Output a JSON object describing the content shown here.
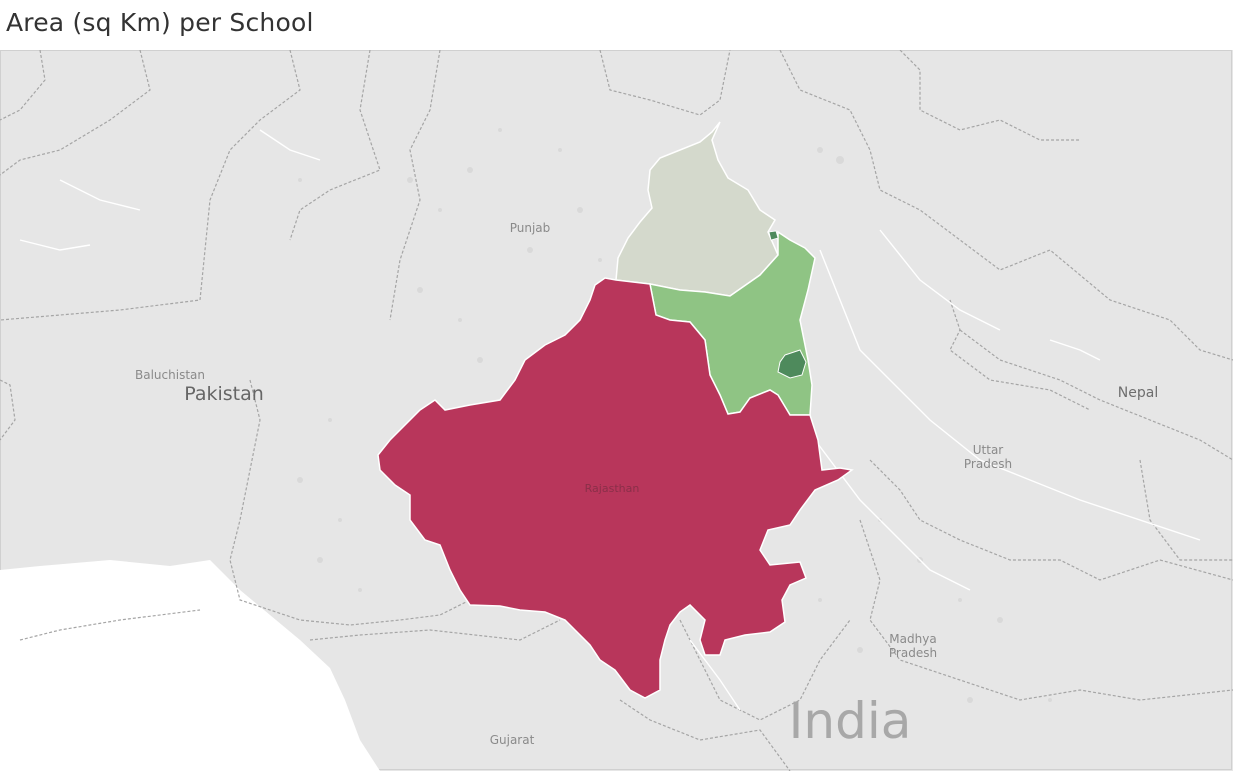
{
  "title": "Area (sq Km) per School",
  "colors": {
    "land": "#e6e6e6",
    "water": "#ffffff",
    "border": "#a5a5a5",
    "rajasthan": "#b8365b",
    "punjab": "#d4d9cc",
    "haryana": "#8fc484",
    "chandigarh_delhi": "#4e8a5c"
  },
  "labels": {
    "punjab": "Punjab",
    "baluchistan": "Baluchistan",
    "pakistan": "Pakistan",
    "rajasthan": "Rajasthan",
    "uttar_line1": "Uttar",
    "uttar_line2": "Pradesh",
    "nepal": "Nepal",
    "madhya_line1": "Madhya",
    "madhya_line2": "Pradesh",
    "gujarat": "Gujarat",
    "india": "India"
  }
}
